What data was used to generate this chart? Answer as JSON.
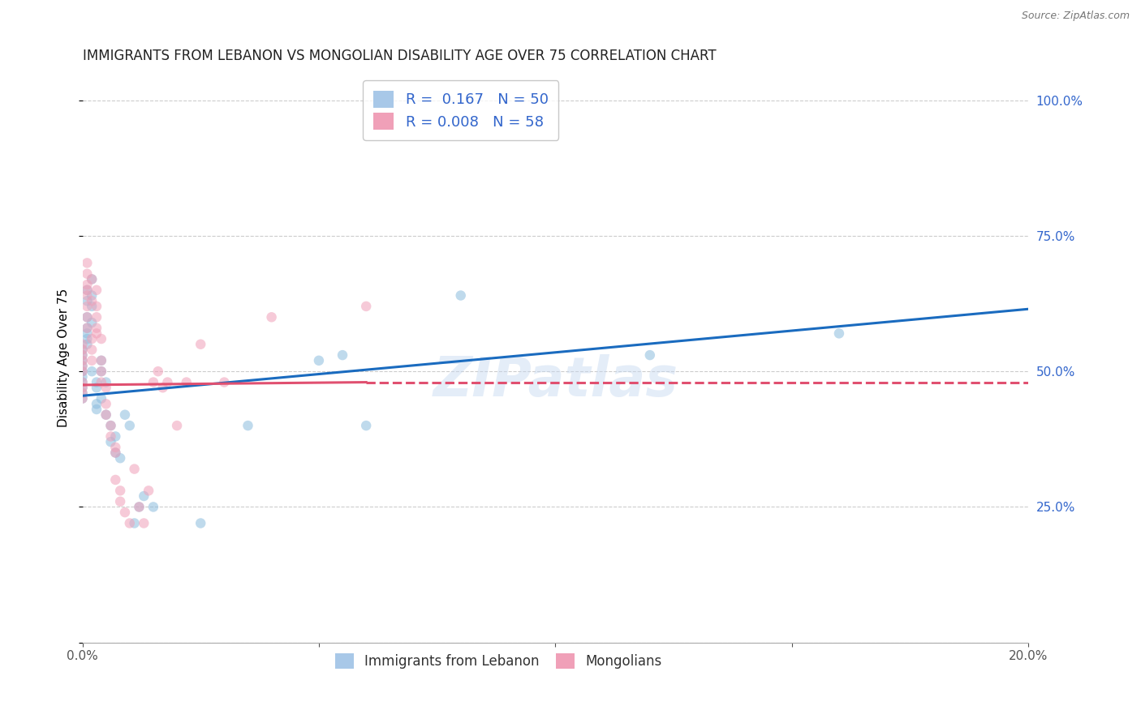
{
  "title": "IMMIGRANTS FROM LEBANON VS MONGOLIAN DISABILITY AGE OVER 75 CORRELATION CHART",
  "source": "Source: ZipAtlas.com",
  "ylabel": "Disability Age Over 75",
  "watermark": "ZIPatlas",
  "series": [
    {
      "label": "Immigrants from Lebanon",
      "color": "#8bbcde",
      "R": 0.167,
      "N": 50,
      "x": [
        0.0,
        0.0,
        0.0,
        0.0,
        0.0,
        0.0,
        0.0,
        0.0,
        0.0,
        0.0,
        0.001,
        0.001,
        0.001,
        0.001,
        0.001,
        0.001,
        0.001,
        0.002,
        0.002,
        0.002,
        0.002,
        0.002,
        0.003,
        0.003,
        0.003,
        0.003,
        0.004,
        0.004,
        0.004,
        0.005,
        0.005,
        0.006,
        0.006,
        0.007,
        0.007,
        0.008,
        0.009,
        0.01,
        0.011,
        0.012,
        0.013,
        0.015,
        0.025,
        0.035,
        0.05,
        0.055,
        0.06,
        0.08,
        0.12,
        0.16
      ],
      "y": [
        0.47,
        0.5,
        0.52,
        0.48,
        0.49,
        0.46,
        0.53,
        0.51,
        0.54,
        0.45,
        0.65,
        0.63,
        0.6,
        0.57,
        0.58,
        0.55,
        0.56,
        0.62,
        0.59,
        0.64,
        0.67,
        0.5,
        0.47,
        0.48,
        0.44,
        0.43,
        0.5,
        0.52,
        0.45,
        0.48,
        0.42,
        0.4,
        0.37,
        0.38,
        0.35,
        0.34,
        0.42,
        0.4,
        0.22,
        0.25,
        0.27,
        0.25,
        0.22,
        0.4,
        0.52,
        0.53,
        0.4,
        0.64,
        0.53,
        0.57
      ],
      "trend_color": "#1a6bbf",
      "trend_x": [
        0.0,
        0.2
      ],
      "trend_y": [
        0.455,
        0.615
      ]
    },
    {
      "label": "Mongolians",
      "color": "#f0a0b8",
      "R": 0.008,
      "N": 58,
      "x": [
        0.0,
        0.0,
        0.0,
        0.0,
        0.0,
        0.0,
        0.0,
        0.0,
        0.0,
        0.0,
        0.001,
        0.001,
        0.001,
        0.001,
        0.001,
        0.001,
        0.001,
        0.001,
        0.002,
        0.002,
        0.002,
        0.002,
        0.002,
        0.003,
        0.003,
        0.003,
        0.003,
        0.003,
        0.004,
        0.004,
        0.004,
        0.004,
        0.005,
        0.005,
        0.005,
        0.006,
        0.006,
        0.007,
        0.007,
        0.007,
        0.008,
        0.008,
        0.009,
        0.01,
        0.011,
        0.012,
        0.013,
        0.014,
        0.015,
        0.016,
        0.017,
        0.018,
        0.02,
        0.022,
        0.025,
        0.03,
        0.04,
        0.06
      ],
      "y": [
        0.55,
        0.52,
        0.5,
        0.48,
        0.47,
        0.46,
        0.54,
        0.51,
        0.53,
        0.45,
        0.68,
        0.66,
        0.64,
        0.62,
        0.7,
        0.65,
        0.6,
        0.58,
        0.67,
        0.63,
        0.56,
        0.54,
        0.52,
        0.65,
        0.62,
        0.6,
        0.58,
        0.57,
        0.56,
        0.52,
        0.5,
        0.48,
        0.47,
        0.44,
        0.42,
        0.4,
        0.38,
        0.36,
        0.35,
        0.3,
        0.28,
        0.26,
        0.24,
        0.22,
        0.32,
        0.25,
        0.22,
        0.28,
        0.48,
        0.5,
        0.47,
        0.48,
        0.4,
        0.48,
        0.55,
        0.48,
        0.6,
        0.62
      ],
      "trend_color": "#e05070",
      "trend_x": [
        0.0,
        0.06
      ],
      "trend_y": [
        0.475,
        0.48
      ]
    }
  ],
  "xlim": [
    0.0,
    0.2
  ],
  "ylim": [
    0.0,
    1.05
  ],
  "yticks": [
    0.0,
    0.25,
    0.5,
    0.75,
    1.0
  ],
  "yticklabels_right": [
    "",
    "25.0%",
    "50.0%",
    "75.0%",
    "100.0%"
  ],
  "xticks": [
    0.0,
    0.05,
    0.1,
    0.15,
    0.2
  ],
  "xticklabels": [
    "0.0%",
    "",
    "",
    "",
    "20.0%"
  ],
  "grid_color": "#cccccc",
  "background_color": "#ffffff",
  "legend_stat_color": "#3366cc",
  "title_fontsize": 12,
  "axis_label_fontsize": 11,
  "tick_fontsize": 11,
  "right_ytick_color": "#3366cc",
  "marker_size": 9,
  "marker_alpha": 0.55,
  "line_width": 2.2
}
